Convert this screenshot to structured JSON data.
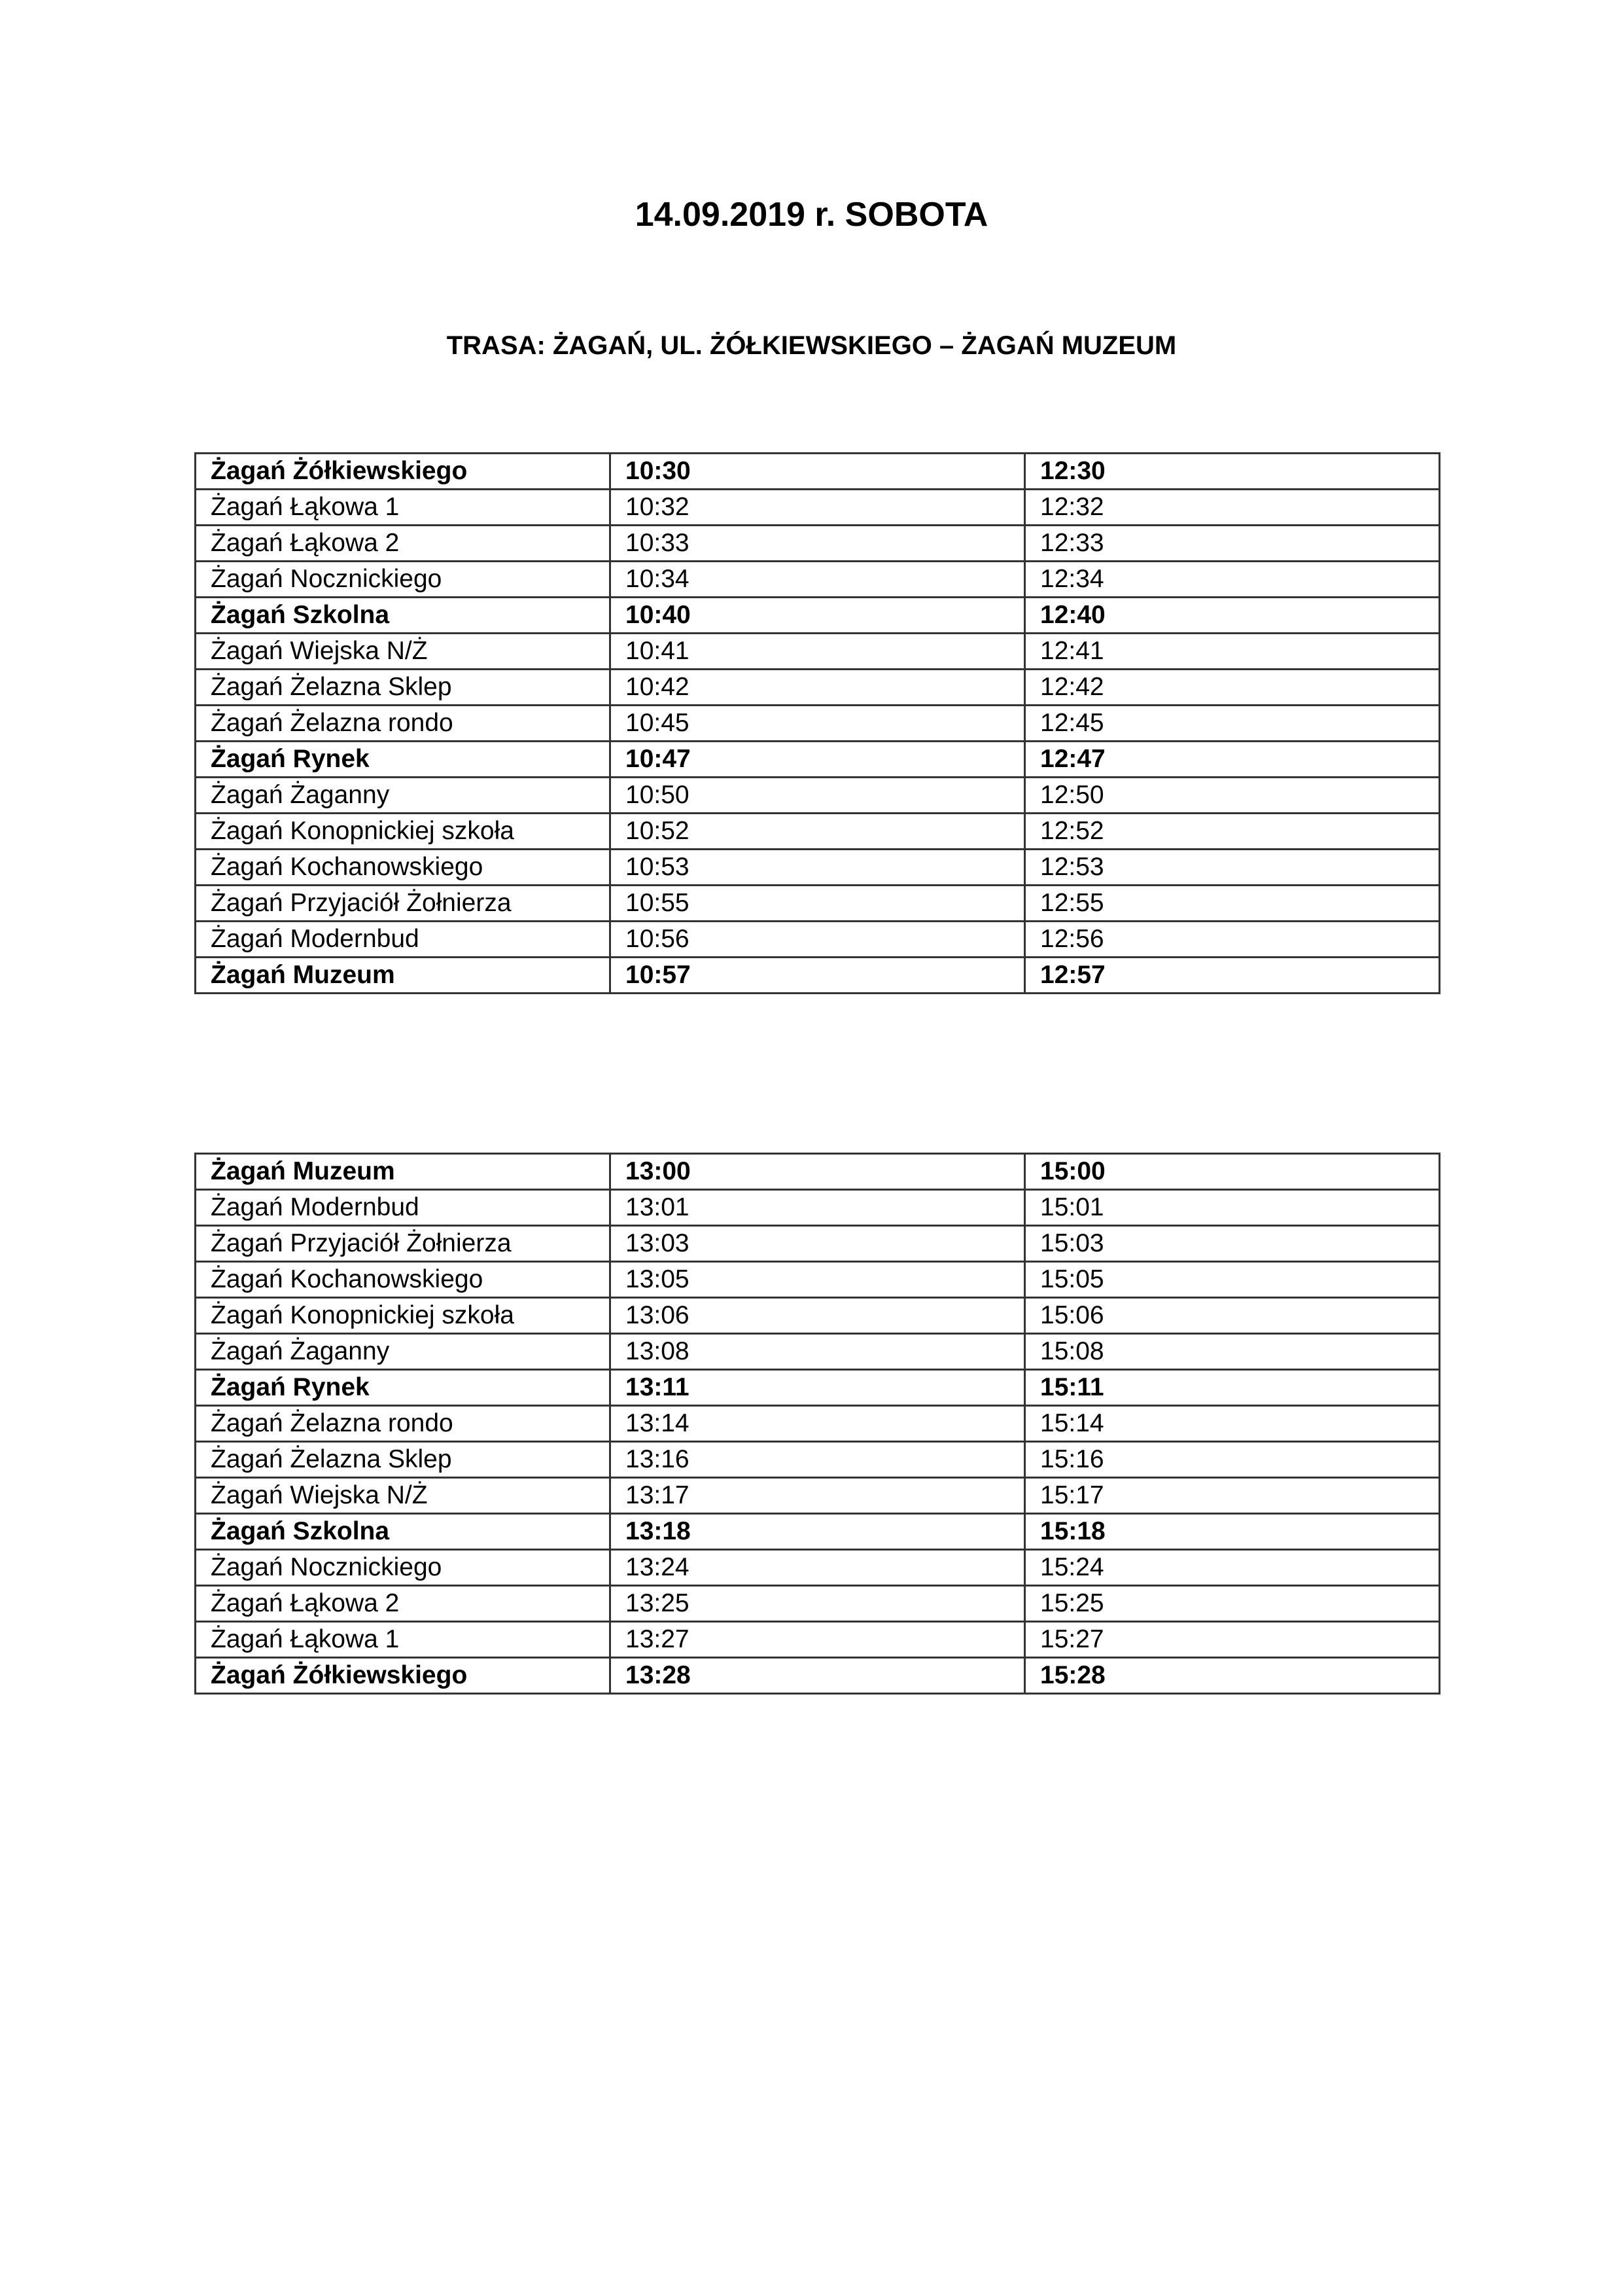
{
  "title": "14.09.2019 r. SOBOTA",
  "subtitle": "TRASA: ŻAGAŃ, UL. ŻÓŁKIEWSKIEGO – ŻAGAŃ MUZEUM",
  "tables": [
    {
      "rows": [
        {
          "stop": "Żagań Żółkiewskiego",
          "t1": "10:30",
          "t2": "12:30",
          "bold": true
        },
        {
          "stop": "Żagań Łąkowa 1",
          "t1": "10:32",
          "t2": "12:32",
          "bold": false
        },
        {
          "stop": "Żagań Łąkowa 2",
          "t1": "10:33",
          "t2": "12:33",
          "bold": false
        },
        {
          "stop": "Żagań Nocznickiego",
          "t1": "10:34",
          "t2": "12:34",
          "bold": false
        },
        {
          "stop": "Żagań Szkolna",
          "t1": "10:40",
          "t2": "12:40",
          "bold": true
        },
        {
          "stop": "Żagań Wiejska N/Ż",
          "t1": "10:41",
          "t2": "12:41",
          "bold": false
        },
        {
          "stop": "Żagań Żelazna Sklep",
          "t1": "10:42",
          "t2": "12:42",
          "bold": false
        },
        {
          "stop": "Żagań Żelazna rondo",
          "t1": "10:45",
          "t2": "12:45",
          "bold": false
        },
        {
          "stop": "Żagań Rynek",
          "t1": "10:47",
          "t2": "12:47",
          "bold": true
        },
        {
          "stop": "Żagań Żaganny",
          "t1": "10:50",
          "t2": "12:50",
          "bold": false
        },
        {
          "stop": "Żagań Konopnickiej szkoła",
          "t1": "10:52",
          "t2": "12:52",
          "bold": false
        },
        {
          "stop": "Żagań Kochanowskiego",
          "t1": "10:53",
          "t2": "12:53",
          "bold": false
        },
        {
          "stop": "Żagań Przyjaciół Żołnierza",
          "t1": "10:55",
          "t2": "12:55",
          "bold": false
        },
        {
          "stop": "Żagań Modernbud",
          "t1": "10:56",
          "t2": "12:56",
          "bold": false
        },
        {
          "stop": "Żagań Muzeum",
          "t1": "10:57",
          "t2": "12:57",
          "bold": true
        }
      ]
    },
    {
      "rows": [
        {
          "stop": "Żagań Muzeum",
          "t1": "13:00",
          "t2": "15:00",
          "bold": true
        },
        {
          "stop": "Żagań Modernbud",
          "t1": "13:01",
          "t2": "15:01",
          "bold": false
        },
        {
          "stop": "Żagań Przyjaciół Żołnierza",
          "t1": "13:03",
          "t2": "15:03",
          "bold": false
        },
        {
          "stop": "Żagań Kochanowskiego",
          "t1": "13:05",
          "t2": "15:05",
          "bold": false
        },
        {
          "stop": "Żagań Konopnickiej szkoła",
          "t1": "13:06",
          "t2": "15:06",
          "bold": false
        },
        {
          "stop": "Żagań Żaganny",
          "t1": "13:08",
          "t2": "15:08",
          "bold": false
        },
        {
          "stop": "Żagań Rynek",
          "t1": "13:11",
          "t2": "15:11",
          "bold": true
        },
        {
          "stop": "Żagań Żelazna rondo",
          "t1": "13:14",
          "t2": "15:14",
          "bold": false
        },
        {
          "stop": "Żagań Żelazna Sklep",
          "t1": "13:16",
          "t2": "15:16",
          "bold": false
        },
        {
          "stop": "Żagań Wiejska N/Ż",
          "t1": "13:17",
          "t2": "15:17",
          "bold": false
        },
        {
          "stop": "Żagań Szkolna",
          "t1": "13:18",
          "t2": "15:18",
          "bold": true
        },
        {
          "stop": "Żagań Nocznickiego",
          "t1": "13:24",
          "t2": "15:24",
          "bold": false
        },
        {
          "stop": "Żagań Łąkowa 2",
          "t1": "13:25",
          "t2": "15:25",
          "bold": false
        },
        {
          "stop": "Żagań Łąkowa 1",
          "t1": "13:27",
          "t2": "15:27",
          "bold": false
        },
        {
          "stop": "Żagań Żółkiewskiego",
          "t1": "13:28",
          "t2": "15:28",
          "bold": true
        }
      ]
    }
  ]
}
